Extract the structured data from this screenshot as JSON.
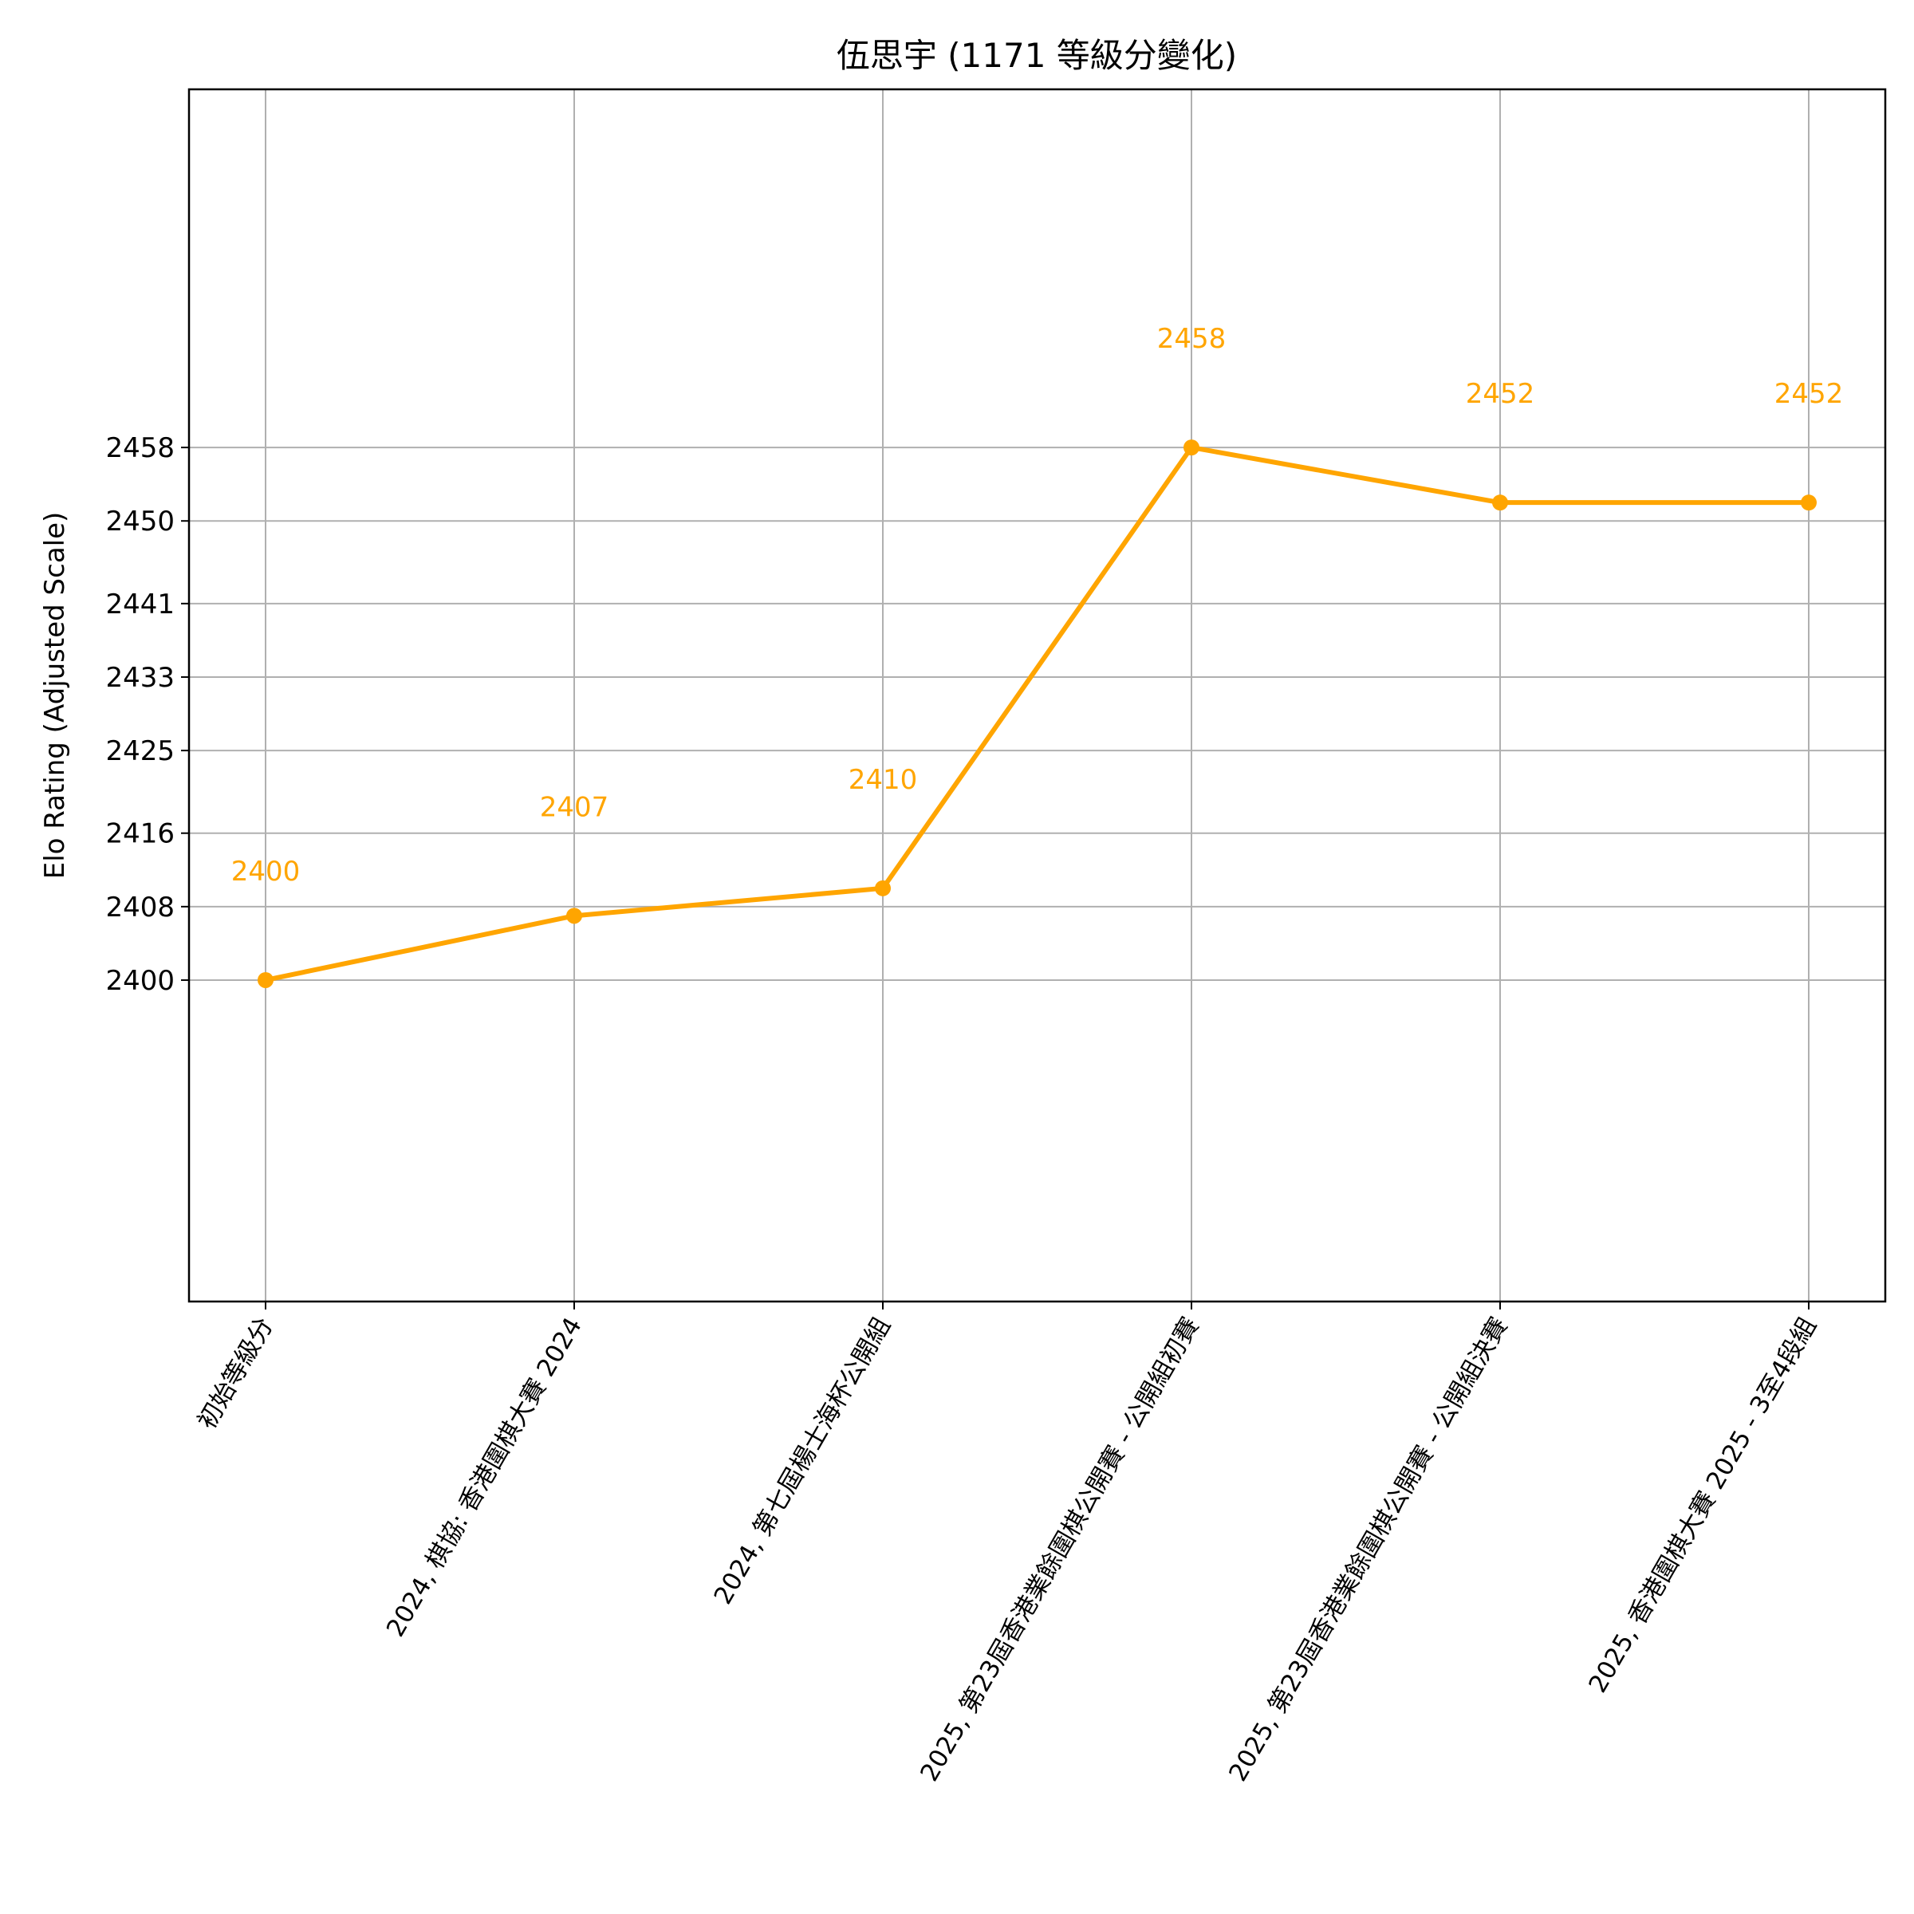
{
  "chart_data": {
    "type": "line",
    "title": "伍思宇 (1171 等級分變化)",
    "xlabel": "",
    "ylabel": "Elo Rating (Adjusted Scale)",
    "categories": [
      "初始等級分",
      "2024, 棋協: 香港圍棋大賽 2024",
      "2024, 第七屆楊士海杯公開組",
      "2025, 第23屆香港業餘圍棋公開賽 - 公開組初賽",
      "2025, 第23屆香港業餘圍棋公開賽 - 公開組決賽",
      "2025, 香港圍棋大賽 2025 - 3至4段組"
    ],
    "series": [
      {
        "values": [
          2400,
          2407,
          2410,
          2458,
          2452,
          2452
        ],
        "data_labels": [
          "2400",
          "2407",
          "2410",
          "2458",
          "2452",
          "2452"
        ],
        "color": "#ffa500"
      }
    ],
    "yticks": [
      2400,
      2408,
      2416,
      2425,
      2433,
      2441,
      2450,
      2458
    ],
    "ytick_labels": [
      "2400",
      "2408",
      "2416",
      "2425",
      "2433",
      "2441",
      "2450",
      "2458"
    ],
    "ylim": [
      2365,
      2497
    ],
    "grid": true,
    "legend": "none"
  }
}
